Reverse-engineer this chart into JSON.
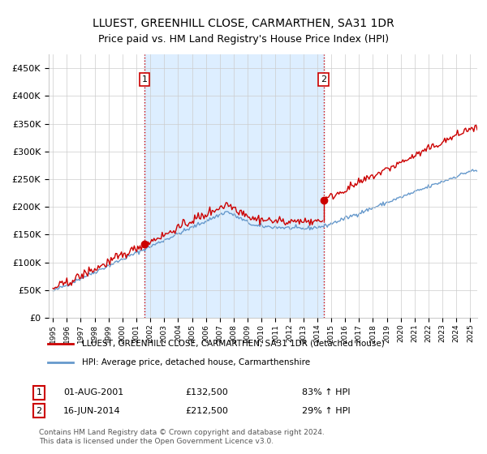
{
  "title": "LLUEST, GREENHILL CLOSE, CARMARTHEN, SA31 1DR",
  "subtitle": "Price paid vs. HM Land Registry's House Price Index (HPI)",
  "ylim": [
    0,
    475000
  ],
  "yticks": [
    0,
    50000,
    100000,
    150000,
    200000,
    250000,
    300000,
    350000,
    400000,
    450000
  ],
  "xlim_start": 1994.7,
  "xlim_end": 2025.5,
  "legend_line1": "LLUEST, GREENHILL CLOSE, CARMARTHEN, SA31 1DR (detached house)",
  "legend_line2": "HPI: Average price, detached house, Carmarthenshire",
  "transaction1_date": 2001.583,
  "transaction1_price": 132500,
  "transaction2_date": 2014.458,
  "transaction2_price": 212500,
  "transaction1_text": "01-AUG-2001",
  "transaction1_price_text": "£132,500",
  "transaction1_hpi_text": "83% ↑ HPI",
  "transaction2_text": "16-JUN-2014",
  "transaction2_price_text": "£212,500",
  "transaction2_hpi_text": "29% ↑ HPI",
  "footnote": "Contains HM Land Registry data © Crown copyright and database right 2024.\nThis data is licensed under the Open Government Licence v3.0.",
  "line_color_red": "#cc0000",
  "line_color_blue": "#6699cc",
  "shade_color": "#ddeeff",
  "vline_color": "#cc0000",
  "grid_color": "#cccccc",
  "background_color": "#ffffff"
}
